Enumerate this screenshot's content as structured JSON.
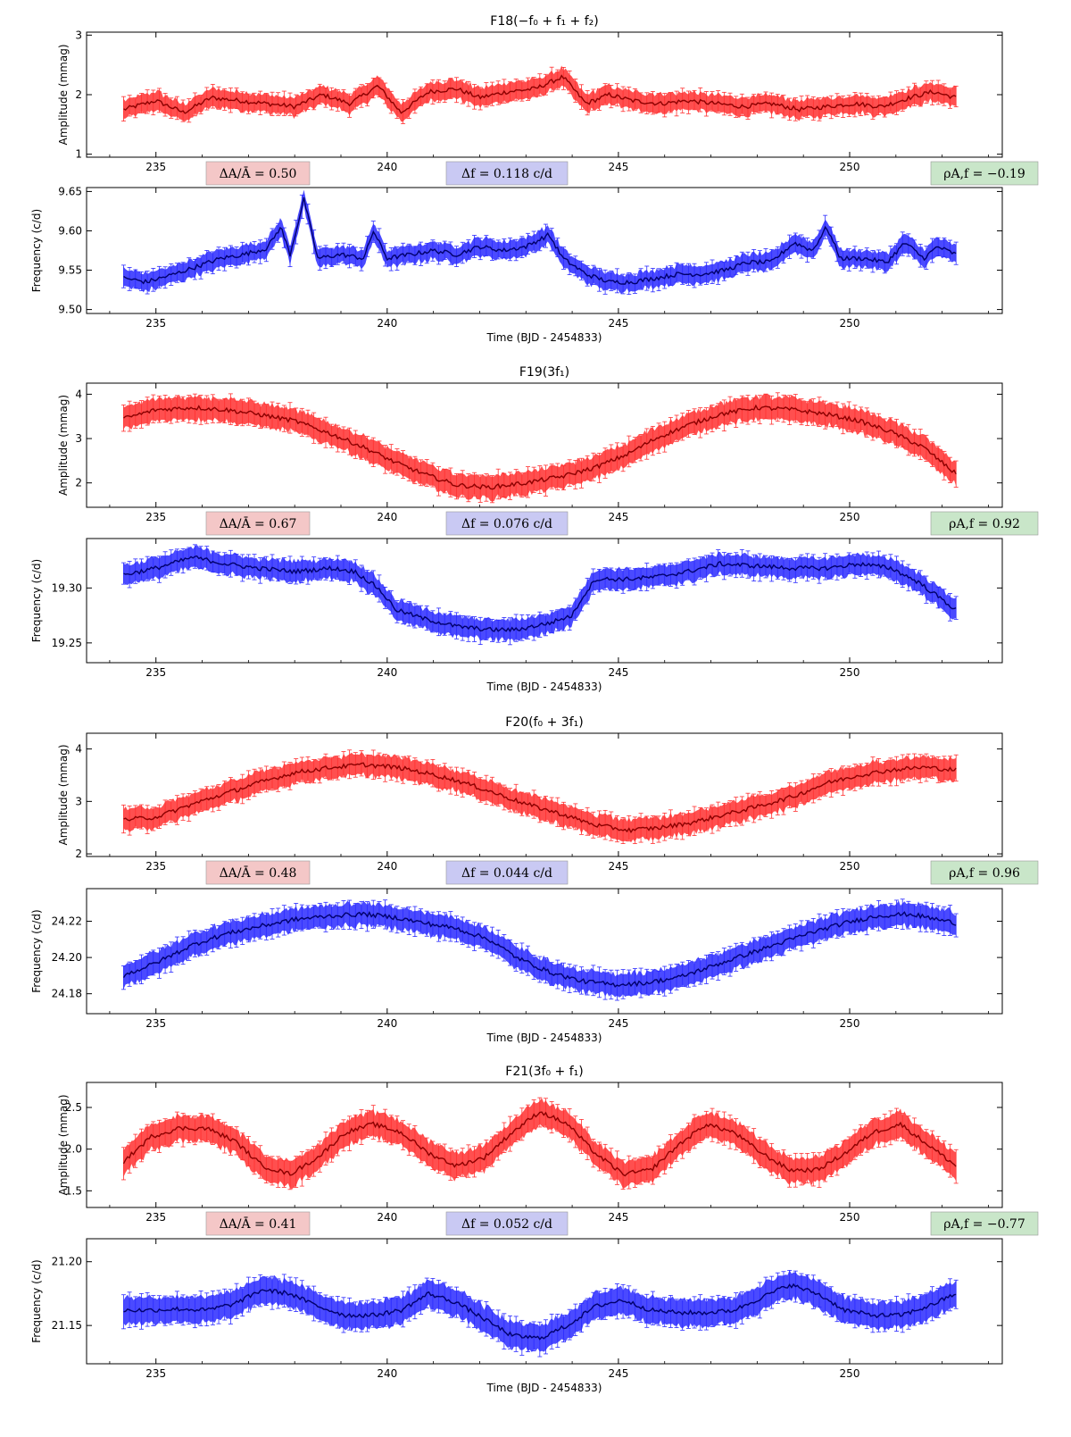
{
  "colors": {
    "amplitude_band": "#ff3030",
    "amplitude_line": "#8b0000",
    "frequency_band": "#2a2aff",
    "frequency_line": "#00006b",
    "amplitude_badge": "#f4c7c7",
    "frequency_badge": "#c9c9f3",
    "correlation_badge": "#c9e6c9"
  },
  "chart_data": [
    {
      "type": "line",
      "title": "F18(−f₀ + f₁ + f₂)",
      "xlabel": "Time (BJD - 2454833)",
      "xlim": [
        233.5,
        253.3
      ],
      "x_ticks": [
        235,
        240,
        245,
        250
      ],
      "x_range_data": [
        234.3,
        252.3
      ],
      "amplitude": {
        "ylabel": "Amplitude (mmag)",
        "ylim": [
          0.95,
          3.05
        ],
        "y_ticks": [
          1,
          2,
          3
        ],
        "points": [
          [
            234.3,
            1.75
          ],
          [
            235.0,
            1.9
          ],
          [
            235.6,
            1.7
          ],
          [
            236.2,
            1.95
          ],
          [
            236.8,
            1.9
          ],
          [
            237.4,
            1.85
          ],
          [
            238.0,
            1.8
          ],
          [
            238.6,
            2.0
          ],
          [
            239.2,
            1.85
          ],
          [
            239.8,
            2.15
          ],
          [
            240.3,
            1.7
          ],
          [
            240.9,
            2.05
          ],
          [
            241.5,
            2.1
          ],
          [
            242.0,
            1.95
          ],
          [
            242.6,
            2.05
          ],
          [
            243.2,
            2.1
          ],
          [
            243.8,
            2.3
          ],
          [
            244.3,
            1.85
          ],
          [
            244.8,
            2.0
          ],
          [
            245.3,
            1.9
          ],
          [
            245.9,
            1.85
          ],
          [
            246.5,
            1.9
          ],
          [
            247.1,
            1.85
          ],
          [
            247.7,
            1.8
          ],
          [
            248.3,
            1.85
          ],
          [
            248.9,
            1.75
          ],
          [
            249.5,
            1.8
          ],
          [
            250.1,
            1.85
          ],
          [
            250.7,
            1.8
          ],
          [
            251.3,
            1.95
          ],
          [
            251.8,
            2.05
          ],
          [
            252.3,
            1.95
          ]
        ],
        "error": 0.15
      },
      "frequency": {
        "ylabel": "Frequency (c/d)",
        "ylim": [
          9.495,
          9.655
        ],
        "y_ticks": [
          9.5,
          9.55,
          9.6,
          9.65
        ],
        "points": [
          [
            234.3,
            9.54
          ],
          [
            234.8,
            9.535
          ],
          [
            235.4,
            9.545
          ],
          [
            235.9,
            9.555
          ],
          [
            236.4,
            9.565
          ],
          [
            236.9,
            9.57
          ],
          [
            237.4,
            9.578
          ],
          [
            237.7,
            9.605
          ],
          [
            237.9,
            9.57
          ],
          [
            238.2,
            9.64
          ],
          [
            238.5,
            9.565
          ],
          [
            239.0,
            9.57
          ],
          [
            239.5,
            9.565
          ],
          [
            239.7,
            9.6
          ],
          [
            240.0,
            9.565
          ],
          [
            240.5,
            9.57
          ],
          [
            241.0,
            9.575
          ],
          [
            241.5,
            9.57
          ],
          [
            242.0,
            9.58
          ],
          [
            242.5,
            9.575
          ],
          [
            243.0,
            9.58
          ],
          [
            243.5,
            9.595
          ],
          [
            243.8,
            9.565
          ],
          [
            244.3,
            9.545
          ],
          [
            244.8,
            9.535
          ],
          [
            245.3,
            9.535
          ],
          [
            245.8,
            9.54
          ],
          [
            246.3,
            9.545
          ],
          [
            246.8,
            9.545
          ],
          [
            247.3,
            9.55
          ],
          [
            247.8,
            9.56
          ],
          [
            248.3,
            9.56
          ],
          [
            248.8,
            9.585
          ],
          [
            249.2,
            9.575
          ],
          [
            249.5,
            9.605
          ],
          [
            249.8,
            9.565
          ],
          [
            250.3,
            9.565
          ],
          [
            250.8,
            9.56
          ],
          [
            251.2,
            9.585
          ],
          [
            251.6,
            9.565
          ],
          [
            251.9,
            9.58
          ],
          [
            252.3,
            9.57
          ]
        ],
        "error": 0.011
      },
      "delta_amplitude": "ΔA/Ā = 0.50",
      "delta_frequency": "Δf = 0.118 c/d",
      "correlation": "ρA,f = −0.19"
    },
    {
      "type": "line",
      "title": "F19(3f₁)",
      "xlabel": "Time (BJD - 2454833)",
      "xlim": [
        233.5,
        253.3
      ],
      "x_ticks": [
        235,
        240,
        245,
        250
      ],
      "x_range_data": [
        234.3,
        252.3
      ],
      "amplitude": {
        "ylabel": "Amplitude (mmag)",
        "ylim": [
          1.45,
          4.25
        ],
        "y_ticks": [
          2,
          3,
          4
        ],
        "points": [
          [
            234.3,
            3.45
          ],
          [
            235.0,
            3.65
          ],
          [
            235.8,
            3.7
          ],
          [
            236.5,
            3.65
          ],
          [
            237.2,
            3.55
          ],
          [
            238.0,
            3.4
          ],
          [
            238.8,
            3.1
          ],
          [
            239.5,
            2.8
          ],
          [
            240.2,
            2.45
          ],
          [
            240.8,
            2.2
          ],
          [
            241.5,
            1.95
          ],
          [
            242.2,
            1.9
          ],
          [
            243.0,
            2.0
          ],
          [
            243.8,
            2.15
          ],
          [
            244.5,
            2.35
          ],
          [
            245.2,
            2.65
          ],
          [
            245.8,
            3.0
          ],
          [
            246.5,
            3.3
          ],
          [
            247.2,
            3.55
          ],
          [
            248.0,
            3.7
          ],
          [
            248.8,
            3.65
          ],
          [
            249.5,
            3.55
          ],
          [
            250.2,
            3.4
          ],
          [
            250.9,
            3.15
          ],
          [
            251.6,
            2.8
          ],
          [
            252.3,
            2.2
          ]
        ],
        "error": 0.25
      },
      "frequency": {
        "ylabel": "Frequency (c/d)",
        "ylim": [
          19.232,
          19.345
        ],
        "y_ticks": [
          19.25,
          19.3
        ],
        "points": [
          [
            234.3,
            19.312
          ],
          [
            235.0,
            19.318
          ],
          [
            235.8,
            19.328
          ],
          [
            236.5,
            19.322
          ],
          [
            237.2,
            19.318
          ],
          [
            238.0,
            19.315
          ],
          [
            238.8,
            19.318
          ],
          [
            239.3,
            19.315
          ],
          [
            239.8,
            19.3
          ],
          [
            240.2,
            19.28
          ],
          [
            240.8,
            19.272
          ],
          [
            241.5,
            19.265
          ],
          [
            242.2,
            19.262
          ],
          [
            242.8,
            19.262
          ],
          [
            243.5,
            19.268
          ],
          [
            244.0,
            19.275
          ],
          [
            244.2,
            19.29
          ],
          [
            244.5,
            19.308
          ],
          [
            245.2,
            19.308
          ],
          [
            245.8,
            19.31
          ],
          [
            246.5,
            19.315
          ],
          [
            247.2,
            19.322
          ],
          [
            248.0,
            19.32
          ],
          [
            248.8,
            19.318
          ],
          [
            249.5,
            19.318
          ],
          [
            250.2,
            19.322
          ],
          [
            250.9,
            19.318
          ],
          [
            251.5,
            19.305
          ],
          [
            252.3,
            19.28
          ]
        ],
        "error": 0.009
      },
      "delta_amplitude": "ΔA/Ā = 0.67",
      "delta_frequency": "Δf = 0.076 c/d",
      "correlation": "ρA,f = 0.92"
    },
    {
      "type": "line",
      "title": "F20(f₀ + 3f₁)",
      "xlabel": "Time (BJD - 2454833)",
      "xlim": [
        233.5,
        253.3
      ],
      "x_ticks": [
        235,
        240,
        245,
        250
      ],
      "x_range_data": [
        234.3,
        252.3
      ],
      "amplitude": {
        "ylabel": "Amplitude (mmag)",
        "ylim": [
          1.95,
          4.3
        ],
        "y_ticks": [
          2,
          3,
          4
        ],
        "points": [
          [
            234.3,
            2.65
          ],
          [
            235.0,
            2.7
          ],
          [
            235.8,
            2.95
          ],
          [
            236.5,
            3.15
          ],
          [
            237.2,
            3.35
          ],
          [
            238.0,
            3.55
          ],
          [
            238.8,
            3.65
          ],
          [
            239.5,
            3.7
          ],
          [
            240.2,
            3.65
          ],
          [
            240.8,
            3.55
          ],
          [
            241.5,
            3.4
          ],
          [
            242.2,
            3.2
          ],
          [
            243.0,
            2.95
          ],
          [
            243.8,
            2.75
          ],
          [
            244.5,
            2.55
          ],
          [
            245.2,
            2.45
          ],
          [
            245.9,
            2.5
          ],
          [
            246.6,
            2.6
          ],
          [
            247.3,
            2.75
          ],
          [
            248.0,
            2.9
          ],
          [
            248.8,
            3.1
          ],
          [
            249.5,
            3.35
          ],
          [
            250.2,
            3.5
          ],
          [
            250.9,
            3.6
          ],
          [
            251.6,
            3.65
          ],
          [
            252.3,
            3.6
          ]
        ],
        "error": 0.2
      },
      "frequency": {
        "ylabel": "Frequency (c/d)",
        "ylim": [
          24.169,
          24.238
        ],
        "y_ticks": [
          24.18,
          24.2,
          24.22
        ],
        "points": [
          [
            234.3,
            24.19
          ],
          [
            235.0,
            24.197
          ],
          [
            235.8,
            24.207
          ],
          [
            236.5,
            24.213
          ],
          [
            237.2,
            24.217
          ],
          [
            238.0,
            24.221
          ],
          [
            238.8,
            24.223
          ],
          [
            239.5,
            24.224
          ],
          [
            240.2,
            24.222
          ],
          [
            240.8,
            24.219
          ],
          [
            241.5,
            24.216
          ],
          [
            242.2,
            24.21
          ],
          [
            242.8,
            24.2
          ],
          [
            243.5,
            24.192
          ],
          [
            244.2,
            24.187
          ],
          [
            244.9,
            24.185
          ],
          [
            245.6,
            24.186
          ],
          [
            246.3,
            24.189
          ],
          [
            247.0,
            24.195
          ],
          [
            247.8,
            24.202
          ],
          [
            248.5,
            24.208
          ],
          [
            249.2,
            24.214
          ],
          [
            249.9,
            24.219
          ],
          [
            250.6,
            24.223
          ],
          [
            251.3,
            24.224
          ],
          [
            252.3,
            24.219
          ]
        ],
        "error": 0.006
      },
      "delta_amplitude": "ΔA/Ā = 0.48",
      "delta_frequency": "Δf = 0.044 c/d",
      "correlation": "ρA,f = 0.96"
    },
    {
      "type": "line",
      "title": "F21(3f₀ + f₁)",
      "xlabel": "Time (BJD - 2454833)",
      "xlim": [
        233.5,
        253.3
      ],
      "x_ticks": [
        235,
        240,
        245,
        250
      ],
      "x_range_data": [
        234.3,
        252.3
      ],
      "amplitude": {
        "ylabel": "Amplitude (mmag)",
        "ylim": [
          1.3,
          2.8
        ],
        "y_ticks": [
          1.5,
          2.0,
          2.5
        ],
        "points": [
          [
            234.3,
            1.85
          ],
          [
            234.9,
            2.15
          ],
          [
            235.5,
            2.25
          ],
          [
            236.1,
            2.25
          ],
          [
            236.7,
            2.1
          ],
          [
            237.3,
            1.8
          ],
          [
            237.9,
            1.7
          ],
          [
            238.5,
            1.9
          ],
          [
            239.1,
            2.2
          ],
          [
            239.7,
            2.3
          ],
          [
            240.3,
            2.2
          ],
          [
            240.9,
            1.95
          ],
          [
            241.5,
            1.8
          ],
          [
            242.1,
            1.9
          ],
          [
            242.7,
            2.2
          ],
          [
            243.3,
            2.45
          ],
          [
            243.9,
            2.3
          ],
          [
            244.5,
            1.95
          ],
          [
            245.1,
            1.7
          ],
          [
            245.7,
            1.75
          ],
          [
            246.3,
            2.05
          ],
          [
            246.9,
            2.3
          ],
          [
            247.5,
            2.2
          ],
          [
            248.1,
            1.95
          ],
          [
            248.7,
            1.75
          ],
          [
            249.3,
            1.75
          ],
          [
            249.9,
            1.95
          ],
          [
            250.5,
            2.2
          ],
          [
            251.1,
            2.3
          ],
          [
            251.7,
            2.05
          ],
          [
            252.3,
            1.8
          ]
        ],
        "error": 0.15
      },
      "frequency": {
        "ylabel": "Frequency (c/d)",
        "ylim": [
          21.12,
          21.218
        ],
        "y_ticks": [
          21.15,
          21.2
        ],
        "points": [
          [
            234.3,
            21.162
          ],
          [
            234.9,
            21.162
          ],
          [
            235.5,
            21.163
          ],
          [
            236.1,
            21.162
          ],
          [
            236.7,
            21.167
          ],
          [
            237.3,
            21.178
          ],
          [
            237.9,
            21.175
          ],
          [
            238.5,
            21.165
          ],
          [
            239.1,
            21.158
          ],
          [
            239.7,
            21.158
          ],
          [
            240.3,
            21.162
          ],
          [
            240.9,
            21.175
          ],
          [
            241.5,
            21.168
          ],
          [
            242.1,
            21.155
          ],
          [
            242.7,
            21.142
          ],
          [
            243.3,
            21.14
          ],
          [
            243.9,
            21.15
          ],
          [
            244.5,
            21.165
          ],
          [
            245.1,
            21.17
          ],
          [
            245.7,
            21.162
          ],
          [
            246.3,
            21.16
          ],
          [
            246.9,
            21.16
          ],
          [
            247.5,
            21.162
          ],
          [
            248.1,
            21.172
          ],
          [
            248.7,
            21.182
          ],
          [
            249.3,
            21.175
          ],
          [
            249.9,
            21.162
          ],
          [
            250.5,
            21.158
          ],
          [
            251.1,
            21.158
          ],
          [
            251.7,
            21.165
          ],
          [
            252.3,
            21.175
          ]
        ],
        "error": 0.01
      },
      "delta_amplitude": "ΔA/Ā = 0.41",
      "delta_frequency": "Δf = 0.052 c/d",
      "correlation": "ρA,f = −0.77"
    }
  ]
}
